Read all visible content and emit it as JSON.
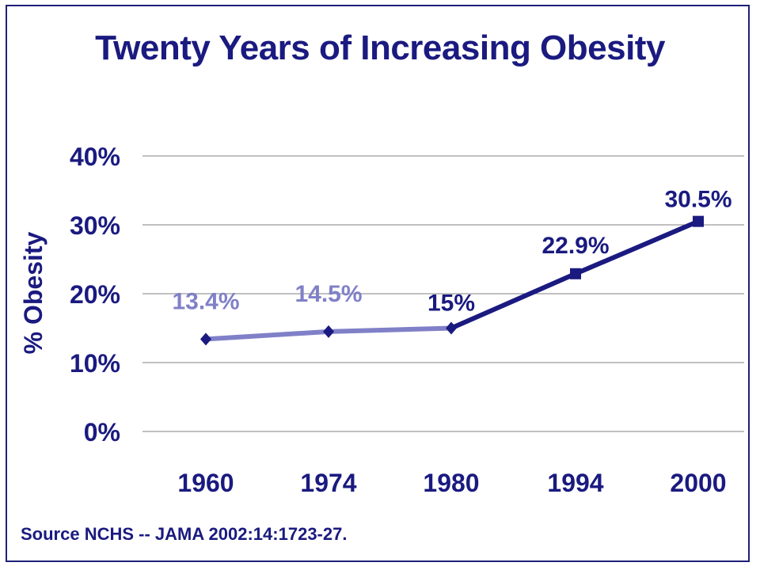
{
  "title": "Twenty Years of Increasing Obesity",
  "source": "Source NCHS -- JAMA 2002:14:1723-27.",
  "colors": {
    "text": "#1a1a80",
    "early_series": "#8080c8",
    "late_series": "#1a1a80",
    "grid": "#808080"
  },
  "chart_data": {
    "type": "line",
    "title": "Twenty Years of Increasing Obesity",
    "ylabel": "% Obesity",
    "xlabel": "",
    "categories": [
      "1960",
      "1974",
      "1980",
      "1994",
      "2000"
    ],
    "values": [
      13.4,
      14.5,
      15,
      22.9,
      30.5
    ],
    "data_labels": [
      "13.4%",
      "14.5%",
      "15%",
      "22.9%",
      "30.5%"
    ],
    "y_ticks": [
      "0%",
      "10%",
      "20%",
      "30%",
      "40%"
    ],
    "ylim": [
      0,
      40
    ],
    "grid": true,
    "marker_styles": [
      "diamond",
      "diamond",
      "diamond",
      "square",
      "square"
    ]
  }
}
